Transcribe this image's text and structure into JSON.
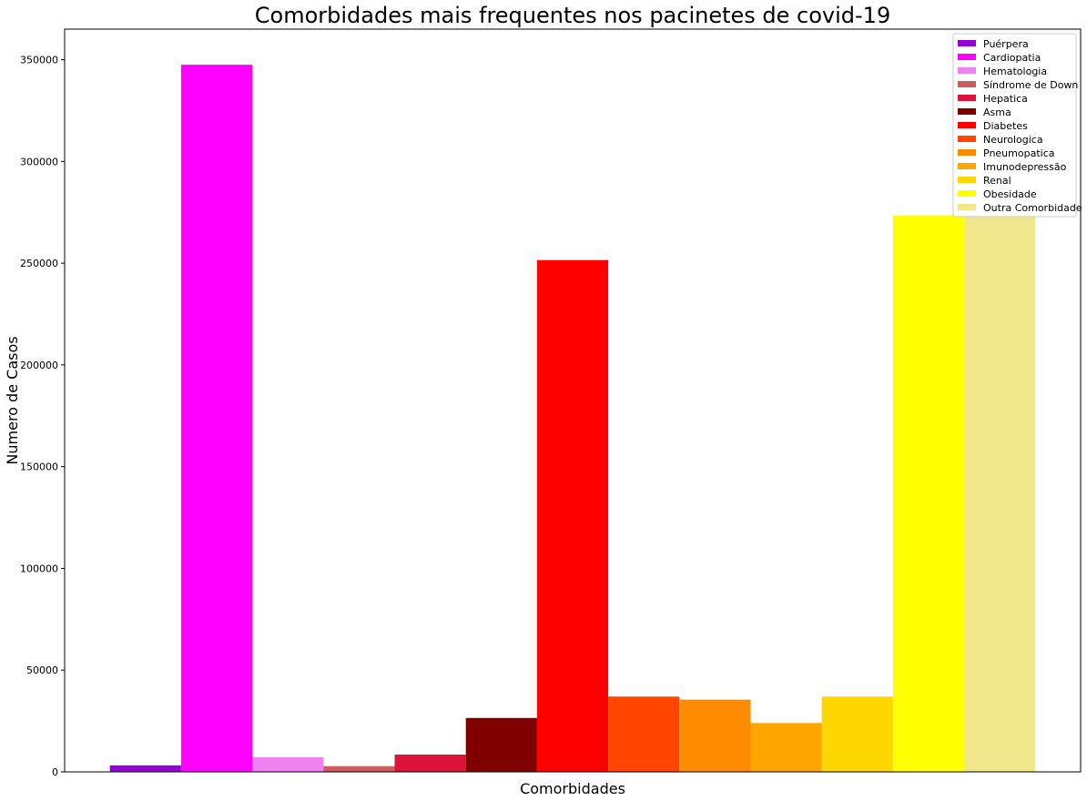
{
  "chart_data": {
    "type": "bar",
    "title": "Comorbidades mais frequentes nos pacinetes de covid-19",
    "xlabel": "Comorbidades",
    "ylabel": "Numero de Casos",
    "ylim": [
      0,
      365000
    ],
    "yticks": [
      0,
      50000,
      100000,
      150000,
      200000,
      250000,
      300000,
      350000
    ],
    "grid": false,
    "legend_position": "top-right",
    "series": [
      {
        "name": "Puérpera",
        "value": 3200,
        "color": "#9400D3"
      },
      {
        "name": "Cardiopatia",
        "value": 347500,
        "color": "#FF00FF"
      },
      {
        "name": "Hematologia",
        "value": 7200,
        "color": "#EE82EE"
      },
      {
        "name": "Síndrome de Down",
        "value": 2800,
        "color": "#CD5C5C"
      },
      {
        "name": "Hepatica",
        "value": 8500,
        "color": "#DC143C"
      },
      {
        "name": "Asma",
        "value": 26500,
        "color": "#800000"
      },
      {
        "name": "Diabetes",
        "value": 251500,
        "color": "#FF0000"
      },
      {
        "name": "Neurologica",
        "value": 37000,
        "color": "#FF4500"
      },
      {
        "name": "Pneumopatica",
        "value": 35500,
        "color": "#FF8C00"
      },
      {
        "name": "Imunodepressão",
        "value": 24000,
        "color": "#FFA500"
      },
      {
        "name": "Renal",
        "value": 37000,
        "color": "#FFD700"
      },
      {
        "name": "Obesidade",
        "value": 273500,
        "color": "#FFFF00"
      },
      {
        "name": "Outra Comorbidade",
        "value": 273500,
        "color": "#F0E68C"
      }
    ]
  }
}
